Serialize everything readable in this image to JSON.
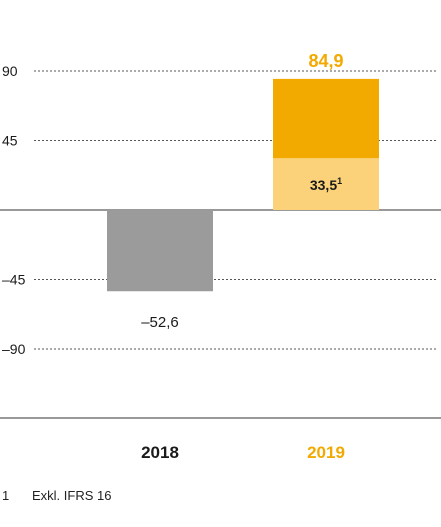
{
  "chart_data": {
    "type": "bar",
    "stacked": true,
    "categories": [
      "2018",
      "2019"
    ],
    "yticks": [
      90,
      45,
      -45,
      -90
    ],
    "ytick_labels": [
      "90",
      "45",
      "–45",
      "–90"
    ],
    "ylim": [
      -90,
      90
    ],
    "grid": true,
    "series": [
      {
        "values": [
          -52.6,
          33.5
        ],
        "colors": [
          "#9b9b9b",
          "#fbd27a"
        ]
      },
      {
        "values": [
          0,
          51.4
        ],
        "colors": [
          "#9b9b9b",
          "#f2a900"
        ]
      }
    ],
    "bar_labels": [
      {
        "category": "2018",
        "text": "–52,6",
        "value": -52.6,
        "color": "#1a1a1a"
      },
      {
        "category": "2019",
        "text": "84,9",
        "value": 84.9,
        "color": "#f2a900"
      },
      {
        "category": "2019",
        "text": "33,5",
        "sup": "1",
        "value": 33.5,
        "color": "#1a1a1a"
      }
    ],
    "category_colors": [
      "#1a1a1a",
      "#f2a900"
    ]
  },
  "footnote": {
    "number": "1",
    "text": "Exkl. IFRS 16"
  }
}
